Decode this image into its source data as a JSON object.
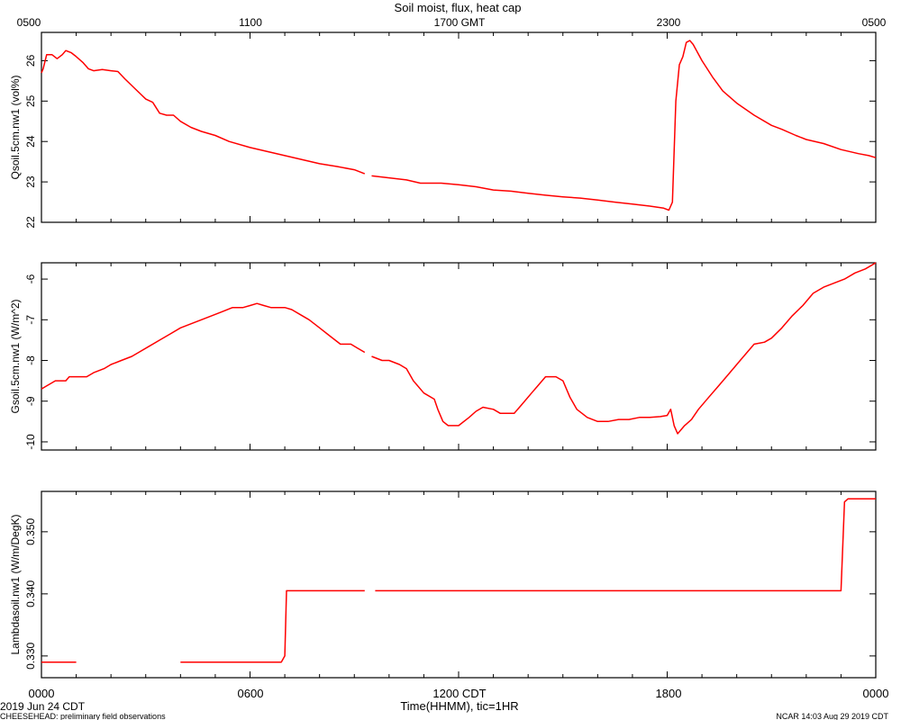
{
  "title": "Soil moist, flux, heat cap",
  "top_axis_ticks": [
    "0500",
    "1100",
    "1700 GMT",
    "2300",
    "0500"
  ],
  "bottom_axis_ticks": [
    "0000",
    "0600",
    "1200 CDT",
    "1800",
    "0000"
  ],
  "xlabel": "Time(HHMM), tic=1HR",
  "date_label": "2019 Jun 24 CDT",
  "footer_left": "CHEESEHEAD: preliminary field observations",
  "footer_right": "NCAR 14:03 Aug 29 2019 CDT",
  "line_color": "#ff0000",
  "chart_data": [
    {
      "type": "line",
      "ylabel": "Qsoil.5cm.nw1 (vol%)",
      "x_units": "hours since 0000 CDT",
      "xlim": [
        0,
        24
      ],
      "ylim": [
        22,
        26.7
      ],
      "yticks": [
        "22",
        "23",
        "24",
        "25",
        "26"
      ],
      "ytick_values": [
        22,
        23,
        24,
        25,
        26
      ],
      "series": [
        {
          "segments": [
            [
              [
                0,
                25.7
              ],
              [
                0.05,
                25.8
              ],
              [
                0.15,
                26.15
              ],
              [
                0.3,
                26.15
              ],
              [
                0.45,
                26.05
              ],
              [
                0.6,
                26.15
              ],
              [
                0.7,
                26.25
              ],
              [
                0.85,
                26.2
              ],
              [
                1.0,
                26.1
              ],
              [
                1.2,
                25.95
              ],
              [
                1.35,
                25.8
              ],
              [
                1.5,
                25.75
              ],
              [
                1.75,
                25.78
              ],
              [
                2.0,
                25.75
              ],
              [
                2.2,
                25.73
              ],
              [
                2.4,
                25.55
              ],
              [
                2.7,
                25.3
              ],
              [
                3.0,
                25.05
              ],
              [
                3.2,
                24.97
              ],
              [
                3.4,
                24.7
              ],
              [
                3.6,
                24.65
              ],
              [
                3.8,
                24.65
              ],
              [
                4.0,
                24.5
              ],
              [
                4.3,
                24.35
              ],
              [
                4.6,
                24.25
              ],
              [
                5.0,
                24.15
              ],
              [
                5.4,
                24.0
              ],
              [
                6.0,
                23.85
              ],
              [
                6.5,
                23.75
              ],
              [
                7.0,
                23.65
              ],
              [
                7.5,
                23.55
              ],
              [
                8.0,
                23.45
              ],
              [
                8.5,
                23.38
              ],
              [
                9.0,
                23.3
              ],
              [
                9.3,
                23.2
              ]
            ],
            [
              [
                9.5,
                23.15
              ],
              [
                10.0,
                23.1
              ],
              [
                10.5,
                23.05
              ],
              [
                10.9,
                22.97
              ],
              [
                11.5,
                22.97
              ],
              [
                12.0,
                22.93
              ],
              [
                12.5,
                22.88
              ],
              [
                13.0,
                22.8
              ],
              [
                13.5,
                22.77
              ],
              [
                14.0,
                22.72
              ],
              [
                14.5,
                22.67
              ],
              [
                15.0,
                22.63
              ],
              [
                15.5,
                22.6
              ],
              [
                16.0,
                22.55
              ],
              [
                16.5,
                22.5
              ],
              [
                17.0,
                22.45
              ],
              [
                17.5,
                22.4
              ],
              [
                17.9,
                22.35
              ],
              [
                18.05,
                22.3
              ],
              [
                18.15,
                22.5
              ],
              [
                18.25,
                25.0
              ],
              [
                18.35,
                25.9
              ],
              [
                18.45,
                26.1
              ],
              [
                18.55,
                26.45
              ],
              [
                18.65,
                26.5
              ],
              [
                18.75,
                26.4
              ],
              [
                19.0,
                26.0
              ],
              [
                19.3,
                25.6
              ],
              [
                19.6,
                25.25
              ],
              [
                20.0,
                24.95
              ],
              [
                20.5,
                24.65
              ],
              [
                21.0,
                24.4
              ],
              [
                21.3,
                24.3
              ],
              [
                21.7,
                24.15
              ],
              [
                22.0,
                24.05
              ],
              [
                22.5,
                23.95
              ],
              [
                23.0,
                23.8
              ],
              [
                23.5,
                23.7
              ],
              [
                23.8,
                23.65
              ],
              [
                24.0,
                23.6
              ]
            ]
          ]
        }
      ]
    },
    {
      "type": "line",
      "ylabel": "Gsoil.5cm.nw1 (W/m^2)",
      "x_units": "hours since 0000 CDT",
      "xlim": [
        0,
        24
      ],
      "ylim": [
        -10.2,
        -5.6
      ],
      "yticks": [
        "-10",
        "-9",
        "-8",
        "-7",
        "-6"
      ],
      "ytick_values": [
        -10,
        -9,
        -8,
        -7,
        -6
      ],
      "series": [
        {
          "segments": [
            [
              [
                0,
                -8.7
              ],
              [
                0.1,
                -8.65
              ],
              [
                0.4,
                -8.5
              ],
              [
                0.7,
                -8.5
              ],
              [
                0.8,
                -8.4
              ],
              [
                1.3,
                -8.4
              ],
              [
                1.5,
                -8.3
              ],
              [
                1.8,
                -8.2
              ],
              [
                2.0,
                -8.1
              ],
              [
                2.3,
                -8.0
              ],
              [
                2.6,
                -7.9
              ],
              [
                2.8,
                -7.8
              ],
              [
                3.1,
                -7.65
              ],
              [
                3.4,
                -7.5
              ],
              [
                3.7,
                -7.35
              ],
              [
                4.0,
                -7.2
              ],
              [
                4.3,
                -7.1
              ],
              [
                4.6,
                -7.0
              ],
              [
                4.9,
                -6.9
              ],
              [
                5.2,
                -6.8
              ],
              [
                5.5,
                -6.7
              ],
              [
                5.8,
                -6.7
              ],
              [
                6.0,
                -6.65
              ],
              [
                6.2,
                -6.6
              ],
              [
                6.4,
                -6.65
              ],
              [
                6.6,
                -6.7
              ],
              [
                7.0,
                -6.7
              ],
              [
                7.2,
                -6.75
              ],
              [
                7.5,
                -6.9
              ],
              [
                7.7,
                -7.0
              ],
              [
                8.0,
                -7.2
              ],
              [
                8.3,
                -7.4
              ],
              [
                8.6,
                -7.6
              ],
              [
                8.9,
                -7.6
              ],
              [
                9.1,
                -7.7
              ],
              [
                9.3,
                -7.8
              ]
            ],
            [
              [
                9.5,
                -7.9
              ],
              [
                9.8,
                -8.0
              ],
              [
                10.0,
                -8.0
              ],
              [
                10.3,
                -8.1
              ],
              [
                10.5,
                -8.2
              ],
              [
                10.7,
                -8.5
              ],
              [
                11.0,
                -8.8
              ],
              [
                11.3,
                -8.95
              ],
              [
                11.4,
                -9.2
              ],
              [
                11.55,
                -9.5
              ],
              [
                11.7,
                -9.6
              ],
              [
                12.0,
                -9.6
              ],
              [
                12.3,
                -9.4
              ],
              [
                12.5,
                -9.25
              ],
              [
                12.7,
                -9.15
              ],
              [
                13.0,
                -9.2
              ],
              [
                13.2,
                -9.3
              ],
              [
                13.6,
                -9.3
              ],
              [
                13.8,
                -9.1
              ],
              [
                14.1,
                -8.8
              ],
              [
                14.3,
                -8.6
              ],
              [
                14.5,
                -8.4
              ],
              [
                14.8,
                -8.4
              ],
              [
                15.0,
                -8.5
              ],
              [
                15.2,
                -8.9
              ],
              [
                15.4,
                -9.2
              ],
              [
                15.7,
                -9.4
              ],
              [
                16.0,
                -9.5
              ],
              [
                16.3,
                -9.5
              ],
              [
                16.6,
                -9.45
              ],
              [
                16.9,
                -9.45
              ],
              [
                17.2,
                -9.4
              ],
              [
                17.5,
                -9.4
              ],
              [
                17.8,
                -9.38
              ],
              [
                18.0,
                -9.35
              ],
              [
                18.1,
                -9.2
              ],
              [
                18.2,
                -9.6
              ],
              [
                18.3,
                -9.8
              ],
              [
                18.5,
                -9.6
              ],
              [
                18.7,
                -9.45
              ],
              [
                18.9,
                -9.2
              ],
              [
                19.2,
                -8.9
              ],
              [
                19.5,
                -8.6
              ],
              [
                19.8,
                -8.3
              ],
              [
                20.1,
                -8.0
              ],
              [
                20.5,
                -7.6
              ],
              [
                20.8,
                -7.55
              ],
              [
                21.0,
                -7.45
              ],
              [
                21.3,
                -7.2
              ],
              [
                21.6,
                -6.9
              ],
              [
                21.9,
                -6.65
              ],
              [
                22.2,
                -6.35
              ],
              [
                22.5,
                -6.2
              ],
              [
                22.8,
                -6.1
              ],
              [
                23.1,
                -6.0
              ],
              [
                23.4,
                -5.85
              ],
              [
                23.7,
                -5.75
              ],
              [
                24.0,
                -5.6
              ]
            ]
          ]
        }
      ]
    },
    {
      "type": "line",
      "ylabel": "Lambdasoil.nw1 (W/m/DegK)",
      "x_units": "hours since 0000 CDT",
      "xlim": [
        0,
        24
      ],
      "ylim": [
        0.3265,
        0.3565
      ],
      "yticks": [
        "0.330",
        "0.340",
        "0.350"
      ],
      "ytick_values": [
        0.33,
        0.34,
        0.35
      ],
      "series": [
        {
          "segments": [
            [
              [
                0,
                0.329
              ],
              [
                1.0,
                0.329
              ]
            ],
            [
              [
                4.0,
                0.329
              ],
              [
                6.9,
                0.329
              ],
              [
                7.0,
                0.33
              ],
              [
                7.05,
                0.3405
              ],
              [
                9.3,
                0.3405
              ]
            ],
            [
              [
                9.6,
                0.3405
              ],
              [
                23.0,
                0.3405
              ],
              [
                23.1,
                0.3548
              ],
              [
                23.2,
                0.3553
              ],
              [
                24.0,
                0.3553
              ]
            ]
          ]
        }
      ]
    }
  ]
}
